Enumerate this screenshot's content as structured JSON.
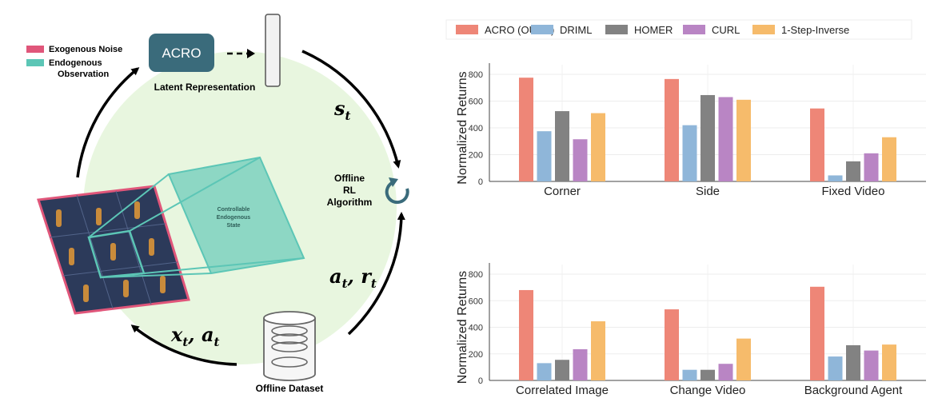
{
  "diagram": {
    "legend": [
      {
        "label": "Exogenous Noise",
        "color": "#e0567a"
      },
      {
        "label": "Endogenous",
        "color": "#5cc6b6"
      },
      {
        "label": "Observation",
        "color": "#5cc6b6"
      }
    ],
    "encoder_box": "ACRO",
    "latent_label": "Latent Representation",
    "state_symbol": "s",
    "state_sub": "t",
    "algo_lines": [
      "Offline",
      "RL",
      "Algorithm"
    ],
    "action_reward_symbol": "a",
    "action_reward_sub": "t",
    "action_reward_sep": ", r",
    "action_reward_sub2": "t",
    "obs_action_symbol": "x",
    "obs_action_sub": "t",
    "obs_action_sep": ", a",
    "obs_action_sub2": "t",
    "dataset_label": "Offline Dataset",
    "state_box_lines": [
      "Controllable",
      "Endogenous",
      "State"
    ],
    "colors": {
      "circle_fill": "#e8f6df",
      "acro_box": "#3a6b7b",
      "noise_border": "#e0567a",
      "endo": "#5cc6b6",
      "tile": "#2c3a5a"
    }
  },
  "legend": {
    "series": [
      {
        "name": "ACRO (OURS)",
        "color": "#ee8677"
      },
      {
        "name": "DRIML",
        "color": "#8fb6d9"
      },
      {
        "name": "HOMER",
        "color": "#828282"
      },
      {
        "name": "CURL",
        "color": "#b985c4"
      },
      {
        "name": "1-Step-Inverse",
        "color": "#f6bb6b"
      }
    ]
  },
  "chart_data": [
    {
      "type": "bar",
      "categories": [
        "Corner",
        "Side",
        "Fixed Video"
      ],
      "series": [
        {
          "name": "ACRO (OURS)",
          "values": [
            775,
            765,
            545
          ]
        },
        {
          "name": "DRIML",
          "values": [
            375,
            420,
            45
          ]
        },
        {
          "name": "HOMER",
          "values": [
            525,
            645,
            150
          ]
        },
        {
          "name": "CURL",
          "values": [
            315,
            630,
            210
          ]
        },
        {
          "name": "1-Step-Inverse",
          "values": [
            510,
            610,
            330
          ]
        }
      ],
      "ylabel": "Normalized Returns",
      "yticks": [
        0,
        200,
        400,
        600,
        800
      ],
      "ylim": [
        0,
        830
      ],
      "grid": true
    },
    {
      "type": "bar",
      "categories": [
        "Correlated Image",
        "Change Video",
        "Background Agent"
      ],
      "series": [
        {
          "name": "ACRO (OURS)",
          "values": [
            680,
            535,
            705
          ]
        },
        {
          "name": "DRIML",
          "values": [
            130,
            80,
            180
          ]
        },
        {
          "name": "HOMER",
          "values": [
            155,
            80,
            265
          ]
        },
        {
          "name": "CURL",
          "values": [
            235,
            125,
            225
          ]
        },
        {
          "name": "1-Step-Inverse",
          "values": [
            445,
            315,
            270
          ]
        }
      ],
      "ylabel": "Normalized Returns",
      "yticks": [
        0,
        200,
        400,
        600,
        800
      ],
      "ylim": [
        0,
        830
      ],
      "grid": true
    }
  ]
}
